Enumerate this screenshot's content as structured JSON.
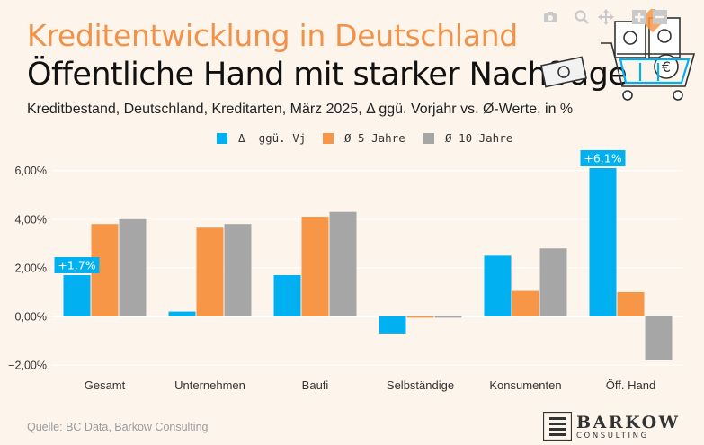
{
  "title": "Kreditentwicklung in Deutschland",
  "headline": "Öffentliche Hand mit starker Nachfrage",
  "subtitle": "Kreditbestand, Deutschland, Kreditarten, März 2025, Δ ggü. Vorjahr vs. Ø-Werte, in %",
  "source": "Quelle: BC Data, Barkow Consulting",
  "logo": {
    "name": "BARKOW",
    "tagline": "CONSULTING"
  },
  "toolbar": {
    "icons": [
      "camera-icon",
      "zoom-icon",
      "pan-icon",
      "zoom-in-icon",
      "zoom-out-icon",
      "home-icon"
    ]
  },
  "colors": {
    "title": "#f0924a",
    "background": "#fdf5ec",
    "series": [
      "#00b0f0",
      "#f79646",
      "#a6a6a6"
    ]
  },
  "chart_data": {
    "type": "bar",
    "categories": [
      "Gesamt",
      "Unternehmen",
      "Baufi",
      "Selbständige",
      "Konsumenten",
      "Öff. Hand"
    ],
    "series": [
      {
        "name": "Δ  ggü. Vj",
        "values": [
          1.7,
          0.2,
          1.7,
          -0.7,
          2.5,
          6.1
        ]
      },
      {
        "name": "Ø 5 Jahre",
        "values": [
          3.8,
          3.65,
          4.1,
          -0.05,
          1.05,
          1.0
        ]
      },
      {
        "name": "Ø 10 Jahre",
        "values": [
          4.0,
          3.8,
          4.3,
          -0.05,
          2.8,
          -1.8
        ]
      }
    ],
    "ylim": [
      -2,
      6
    ],
    "yticks": [
      "−2,00%",
      "0,00%",
      "2,00%",
      "4,00%",
      "6,00%"
    ],
    "annotations": [
      {
        "category": "Gesamt",
        "series": "Δ  ggü. Vj",
        "text": "+1,7%"
      },
      {
        "category": "Öff. Hand",
        "series": "Δ  ggü. Vj",
        "text": "+6,1%"
      }
    ],
    "legend_position": "top-center",
    "grid": true
  }
}
